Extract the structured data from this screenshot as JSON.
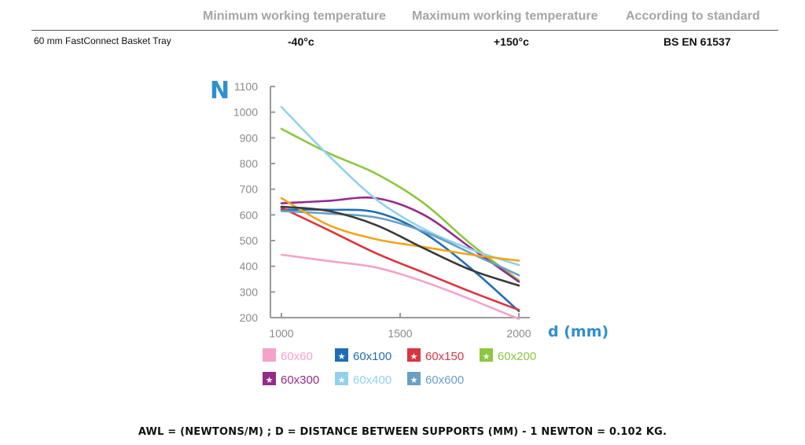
{
  "specs": {
    "headers": [
      "Minimum working temperature",
      "Maximum working temperature",
      "According to standard"
    ],
    "row": {
      "product": "60 mm FastConnect Basket Tray",
      "min_temp": "-40°c",
      "max_temp": "+150°c",
      "standard": "BS EN 61537"
    }
  },
  "chart_data": {
    "type": "line",
    "ylabel": "N",
    "xlabel": "d (mm)",
    "x": [
      1000,
      1500,
      2000
    ],
    "xlim": [
      1000,
      2000
    ],
    "ylim": [
      200,
      1100
    ],
    "yticks": [
      200,
      300,
      400,
      500,
      600,
      700,
      800,
      900,
      1000,
      1100
    ],
    "xticks": [
      1000,
      1500,
      2000
    ],
    "grid": false,
    "legend_position": "bottom",
    "series": [
      {
        "name": "60x60",
        "color": "#f4a3c8",
        "star": false,
        "points": [
          [
            1000,
            445
          ],
          [
            1200,
            420
          ],
          [
            1400,
            395
          ],
          [
            1600,
            340
          ],
          [
            1800,
            270
          ],
          [
            2000,
            195
          ]
        ]
      },
      {
        "name": "60x100",
        "color": "#1f6db5",
        "star": true,
        "points": [
          [
            1000,
            620
          ],
          [
            1200,
            620
          ],
          [
            1400,
            610
          ],
          [
            1600,
            530
          ],
          [
            1800,
            390
          ],
          [
            2000,
            225
          ]
        ]
      },
      {
        "name": "60x150",
        "color": "#d93540",
        "star": true,
        "points": [
          [
            1000,
            628
          ],
          [
            1200,
            540
          ],
          [
            1400,
            450
          ],
          [
            1600,
            375
          ],
          [
            1800,
            300
          ],
          [
            2000,
            230
          ]
        ]
      },
      {
        "name": "60x200",
        "color": "#8dc63f",
        "star": true,
        "points": [
          [
            1000,
            935
          ],
          [
            1200,
            840
          ],
          [
            1400,
            760
          ],
          [
            1600,
            645
          ],
          [
            1800,
            485
          ],
          [
            2000,
            345
          ]
        ]
      },
      {
        "name": "60x300",
        "color": "#932a8c",
        "star": true,
        "points": [
          [
            1000,
            645
          ],
          [
            1200,
            655
          ],
          [
            1400,
            665
          ],
          [
            1600,
            600
          ],
          [
            1800,
            470
          ],
          [
            2000,
            340
          ]
        ]
      },
      {
        "name": "60x400",
        "color": "#92d1ee",
        "star": true,
        "points": [
          [
            1000,
            1020
          ],
          [
            1200,
            830
          ],
          [
            1400,
            660
          ],
          [
            1600,
            545
          ],
          [
            1800,
            465
          ],
          [
            2000,
            405
          ]
        ]
      },
      {
        "name": "60x600",
        "color": "#6a9fc6",
        "star": true,
        "points": [
          [
            1000,
            615
          ],
          [
            1200,
            605
          ],
          [
            1400,
            590
          ],
          [
            1600,
            535
          ],
          [
            1800,
            450
          ],
          [
            2000,
            365
          ]
        ]
      },
      {
        "name": "",
        "color": "#f5a31a",
        "star": false,
        "points": [
          [
            1000,
            665
          ],
          [
            1200,
            560
          ],
          [
            1400,
            505
          ],
          [
            1600,
            475
          ],
          [
            1800,
            445
          ],
          [
            2000,
            422
          ]
        ]
      },
      {
        "name": "",
        "color": "#3a3a3a",
        "star": false,
        "points": [
          [
            1000,
            632
          ],
          [
            1200,
            615
          ],
          [
            1400,
            560
          ],
          [
            1600,
            470
          ],
          [
            1800,
            385
          ],
          [
            2000,
            325
          ]
        ]
      }
    ]
  },
  "footnote": "AWL = (NEWTONS/M) ; D = DISTANCE BETWEEN SUPPORTS (MM) - 1 NEWTON = 0.102 KG."
}
